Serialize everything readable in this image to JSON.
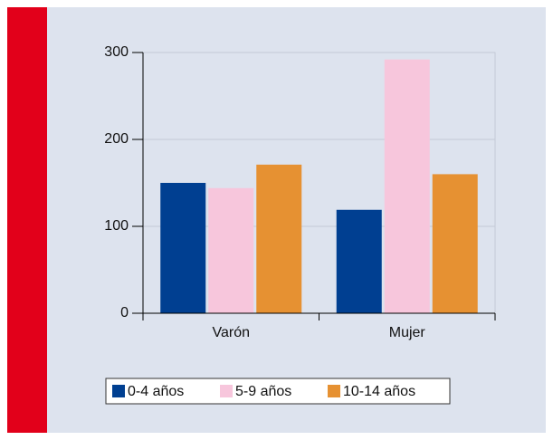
{
  "chart_data": {
    "type": "bar",
    "categories": [
      "Varón",
      "Mujer"
    ],
    "series": [
      {
        "name": "0-4 años",
        "color": "#003f91",
        "values": [
          150,
          119
        ]
      },
      {
        "name": "5-9 años",
        "color": "#f7c6dc",
        "values": [
          144,
          292
        ]
      },
      {
        "name": "10-14 años",
        "color": "#e69132",
        "values": [
          171,
          160
        ]
      }
    ],
    "ylim": [
      0,
      300
    ],
    "yticks": [
      0,
      100,
      200,
      300
    ],
    "grid": true,
    "legend": "bottom"
  }
}
